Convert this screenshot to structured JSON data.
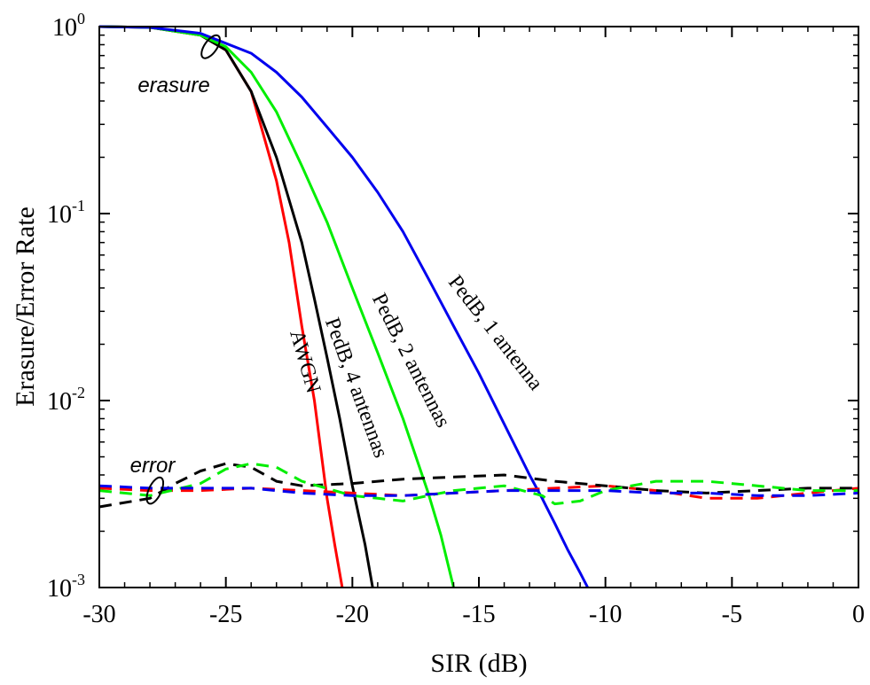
{
  "chart_data": {
    "type": "line",
    "xlabel": "SIR (dB)",
    "ylabel": "Erasure/Error Rate",
    "xlim": [
      -30,
      0
    ],
    "ylim": [
      0.001,
      1
    ],
    "yscale": "log",
    "grid": false,
    "legend": "none",
    "x_ticks": [
      "-30",
      "-25",
      "-20",
      "-15",
      "-10",
      "-5",
      "0"
    ],
    "y_ticks": [
      {
        "base": "10",
        "exp": "0"
      },
      {
        "base": "10",
        "exp": "-1"
      },
      {
        "base": "10",
        "exp": "-2"
      },
      {
        "base": "10",
        "exp": "-3"
      }
    ],
    "annotations": [
      {
        "text": "erasure",
        "x": -25.5,
        "y": 0.74
      },
      {
        "text": "error",
        "x": -27.8,
        "y": 0.0033
      }
    ],
    "series": [
      {
        "name": "AWGN",
        "style": "solid",
        "color": "#ff0000",
        "x": [
          -30,
          -28,
          -26,
          -25,
          -24,
          -23,
          -22.5,
          -22,
          -21.5,
          -21,
          -20.7,
          -20.4
        ],
        "y": [
          1.0,
          0.99,
          0.9,
          0.75,
          0.45,
          0.15,
          0.07,
          0.025,
          0.01,
          0.003,
          0.0017,
          0.001
        ]
      },
      {
        "name": "PedB, 4 antennas",
        "style": "solid",
        "color": "#000000",
        "x": [
          -30,
          -28,
          -26,
          -25,
          -24,
          -23,
          -22,
          -21.5,
          -21,
          -20.5,
          -20,
          -19.5,
          -19.2
        ],
        "y": [
          1.0,
          0.99,
          0.9,
          0.75,
          0.45,
          0.2,
          0.07,
          0.035,
          0.017,
          0.008,
          0.0035,
          0.0017,
          0.001
        ]
      },
      {
        "name": "PedB, 2 antennas",
        "style": "solid",
        "color": "#00ee00",
        "x": [
          -30,
          -28,
          -26,
          -25,
          -24,
          -23,
          -22,
          -21,
          -20,
          -19,
          -18,
          -17,
          -16.5,
          -16
        ],
        "y": [
          1.0,
          0.99,
          0.9,
          0.78,
          0.57,
          0.35,
          0.18,
          0.09,
          0.04,
          0.018,
          0.008,
          0.0032,
          0.0019,
          0.001
        ]
      },
      {
        "name": "PedB, 1 antenna",
        "style": "solid",
        "color": "#0000ee",
        "x": [
          -30,
          -28,
          -26,
          -24,
          -23,
          -22,
          -21,
          -20,
          -19,
          -18,
          -17,
          -16,
          -15,
          -14,
          -13,
          -12.5,
          -12,
          -11.5,
          -11,
          -10.7
        ],
        "y": [
          1.0,
          0.99,
          0.92,
          0.72,
          0.57,
          0.42,
          0.29,
          0.2,
          0.13,
          0.08,
          0.045,
          0.025,
          0.014,
          0.0075,
          0.004,
          0.003,
          0.0022,
          0.0016,
          0.0012,
          0.001
        ]
      },
      {
        "name": "AWGN error",
        "style": "dashed",
        "color": "#ff0000",
        "x": [
          -30,
          -28,
          -26,
          -24,
          -22,
          -20,
          -18,
          -16,
          -14,
          -12,
          -10,
          -8,
          -6,
          -4,
          -2,
          0
        ],
        "y": [
          0.0034,
          0.0033,
          0.0033,
          0.0034,
          0.0033,
          0.0032,
          0.0031,
          0.0032,
          0.0033,
          0.0034,
          0.0035,
          0.0033,
          0.003,
          0.003,
          0.0032,
          0.0034
        ]
      },
      {
        "name": "PedB, 4 antennas error",
        "style": "dashed",
        "color": "#000000",
        "x": [
          -30,
          -28,
          -27,
          -26,
          -25,
          -24,
          -23,
          -22,
          -20,
          -18,
          -16,
          -14,
          -12,
          -10,
          -8,
          -6,
          -4,
          -2,
          0
        ],
        "y": [
          0.0027,
          0.003,
          0.0036,
          0.0042,
          0.0046,
          0.0044,
          0.0037,
          0.0035,
          0.0036,
          0.0038,
          0.0039,
          0.004,
          0.0037,
          0.0035,
          0.0033,
          0.0032,
          0.0033,
          0.0034,
          0.0034
        ]
      },
      {
        "name": "PedB, 2 antennas error",
        "style": "dashed",
        "color": "#00ee00",
        "x": [
          -30,
          -28,
          -26,
          -25,
          -24,
          -23,
          -22,
          -20,
          -19,
          -18,
          -17,
          -16,
          -14,
          -12.5,
          -12,
          -11,
          -10,
          -8,
          -6,
          -4,
          -2,
          0
        ],
        "y": [
          0.0033,
          0.0031,
          0.0036,
          0.0043,
          0.0046,
          0.0044,
          0.0037,
          0.0031,
          0.003,
          0.0029,
          0.0031,
          0.0033,
          0.0035,
          0.0031,
          0.0028,
          0.0029,
          0.0033,
          0.0037,
          0.0037,
          0.0035,
          0.0033,
          0.0033
        ]
      },
      {
        "name": "PedB, 1 antenna error",
        "style": "dashed",
        "color": "#0000ee",
        "x": [
          -30,
          -28,
          -26,
          -24,
          -22,
          -20,
          -18,
          -16,
          -14,
          -12,
          -10,
          -8,
          -6,
          -4,
          -2,
          0
        ],
        "y": [
          0.0035,
          0.0034,
          0.0034,
          0.0034,
          0.0032,
          0.0031,
          0.0031,
          0.0032,
          0.0033,
          0.0033,
          0.0033,
          0.0032,
          0.0032,
          0.0031,
          0.0031,
          0.0032
        ]
      }
    ]
  }
}
